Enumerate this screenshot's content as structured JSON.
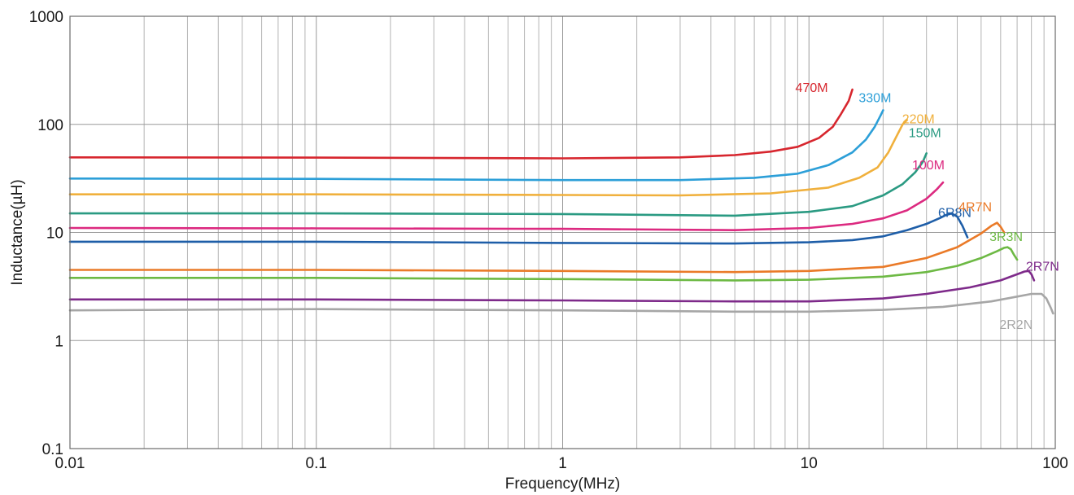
{
  "chart_data": {
    "type": "line",
    "title": "",
    "xlabel": "Frequency(MHz)",
    "ylabel": "Inductance(µH)",
    "xscale": "log",
    "yscale": "log",
    "xlim": [
      0.01,
      100
    ],
    "ylim": [
      0.1,
      1000
    ],
    "grid": true,
    "x_ticks": [
      "0.01",
      "0.1",
      "1",
      "10",
      "100"
    ],
    "y_ticks": [
      "0.1",
      "1",
      "10",
      "100",
      "1000"
    ],
    "legend": "inline labels at curve ends",
    "series": [
      {
        "name": "470M",
        "color": "#d7262e",
        "points": [
          [
            0.01,
            49.5
          ],
          [
            0.1,
            49.2
          ],
          [
            1,
            48.5
          ],
          [
            3,
            49.5
          ],
          [
            5,
            52
          ],
          [
            7,
            56
          ],
          [
            9,
            62
          ],
          [
            11,
            75
          ],
          [
            12.5,
            95
          ],
          [
            13.5,
            125
          ],
          [
            14.5,
            165
          ],
          [
            15,
            210
          ]
        ]
      },
      {
        "name": "330M",
        "color": "#2c9fd8",
        "points": [
          [
            0.01,
            31.5
          ],
          [
            0.1,
            31.3
          ],
          [
            1,
            30.5
          ],
          [
            3,
            30.5
          ],
          [
            6,
            32
          ],
          [
            9,
            35
          ],
          [
            12,
            42
          ],
          [
            15,
            55
          ],
          [
            17,
            72
          ],
          [
            18.5,
            95
          ],
          [
            19.5,
            120
          ],
          [
            20,
            135
          ]
        ]
      },
      {
        "name": "220M",
        "color": "#f0b03c",
        "points": [
          [
            0.01,
            22.5
          ],
          [
            0.1,
            22.5
          ],
          [
            1,
            22.2
          ],
          [
            3,
            22
          ],
          [
            7,
            23
          ],
          [
            12,
            26
          ],
          [
            16,
            32
          ],
          [
            19,
            40
          ],
          [
            21,
            55
          ],
          [
            22.5,
            75
          ],
          [
            24,
            100
          ],
          [
            25,
            110
          ]
        ]
      },
      {
        "name": "150M",
        "color": "#2a9a82",
        "points": [
          [
            0.01,
            15
          ],
          [
            0.1,
            15
          ],
          [
            1,
            14.8
          ],
          [
            5,
            14.3
          ],
          [
            10,
            15.5
          ],
          [
            15,
            17.5
          ],
          [
            20,
            22
          ],
          [
            24,
            28
          ],
          [
            27,
            36
          ],
          [
            29,
            45
          ],
          [
            30,
            54
          ]
        ]
      },
      {
        "name": "100M",
        "color": "#dc2a80",
        "points": [
          [
            0.01,
            11
          ],
          [
            0.1,
            10.9
          ],
          [
            1,
            10.8
          ],
          [
            5,
            10.5
          ],
          [
            10,
            11
          ],
          [
            15,
            12
          ],
          [
            20,
            13.5
          ],
          [
            25,
            16
          ],
          [
            30,
            20.5
          ],
          [
            33,
            25
          ],
          [
            35,
            29
          ]
        ]
      },
      {
        "name": "6R8N",
        "color": "#1e5ea8",
        "points": [
          [
            0.01,
            8.2
          ],
          [
            0.1,
            8.2
          ],
          [
            1,
            8
          ],
          [
            5,
            7.9
          ],
          [
            10,
            8.1
          ],
          [
            15,
            8.5
          ],
          [
            20,
            9.2
          ],
          [
            25,
            10.5
          ],
          [
            30,
            12
          ],
          [
            34,
            13.6
          ],
          [
            36,
            14.5
          ],
          [
            38,
            15
          ],
          [
            40,
            14
          ],
          [
            42,
            11.5
          ],
          [
            44,
            9
          ]
        ]
      },
      {
        "name": "4R7N",
        "color": "#ea7a28",
        "points": [
          [
            0.01,
            4.5
          ],
          [
            0.1,
            4.5
          ],
          [
            1,
            4.4
          ],
          [
            5,
            4.3
          ],
          [
            10,
            4.4
          ],
          [
            20,
            4.8
          ],
          [
            30,
            5.8
          ],
          [
            40,
            7.3
          ],
          [
            50,
            9.8
          ],
          [
            55,
            11.5
          ],
          [
            58,
            12.3
          ],
          [
            60,
            11.3
          ],
          [
            62,
            10
          ]
        ]
      },
      {
        "name": "3R3N",
        "color": "#6db944",
        "points": [
          [
            0.01,
            3.8
          ],
          [
            0.1,
            3.8
          ],
          [
            1,
            3.7
          ],
          [
            5,
            3.6
          ],
          [
            10,
            3.65
          ],
          [
            20,
            3.9
          ],
          [
            30,
            4.3
          ],
          [
            40,
            4.9
          ],
          [
            50,
            5.8
          ],
          [
            58,
            6.7
          ],
          [
            62,
            7.2
          ],
          [
            64,
            7.3
          ],
          [
            66,
            7
          ],
          [
            68,
            6.2
          ],
          [
            70,
            5.6
          ]
        ]
      },
      {
        "name": "2R7N",
        "color": "#7e2a8a",
        "points": [
          [
            0.01,
            2.4
          ],
          [
            0.1,
            2.4
          ],
          [
            1,
            2.35
          ],
          [
            5,
            2.3
          ],
          [
            10,
            2.3
          ],
          [
            20,
            2.45
          ],
          [
            30,
            2.7
          ],
          [
            45,
            3.1
          ],
          [
            60,
            3.6
          ],
          [
            70,
            4.1
          ],
          [
            75,
            4.35
          ],
          [
            78,
            4.4
          ],
          [
            80,
            4.1
          ],
          [
            82,
            3.6
          ]
        ]
      },
      {
        "name": "2R2N",
        "color": "#a6a6a6",
        "points": [
          [
            0.01,
            1.9
          ],
          [
            0.1,
            1.95
          ],
          [
            1,
            1.9
          ],
          [
            5,
            1.85
          ],
          [
            10,
            1.85
          ],
          [
            20,
            1.92
          ],
          [
            35,
            2.05
          ],
          [
            55,
            2.3
          ],
          [
            70,
            2.55
          ],
          [
            80,
            2.7
          ],
          [
            88,
            2.7
          ],
          [
            92,
            2.45
          ],
          [
            96,
            2.0
          ],
          [
            98,
            1.78
          ]
        ]
      }
    ]
  }
}
